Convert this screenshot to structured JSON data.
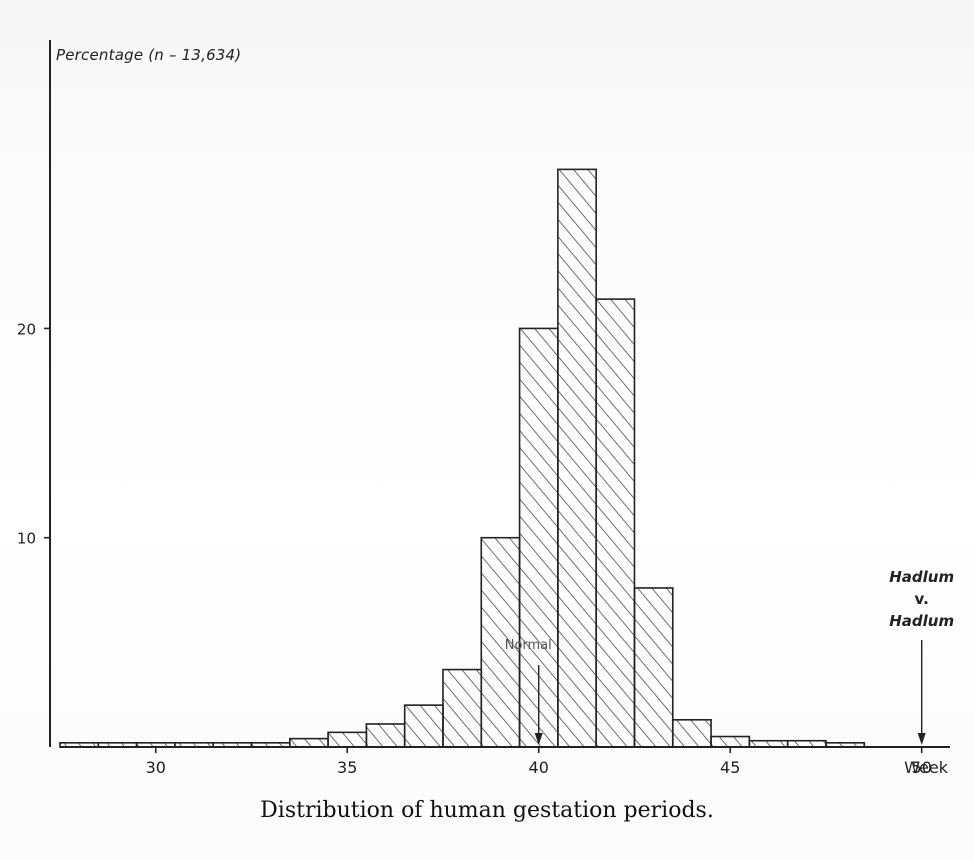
{
  "chart_data": {
    "type": "bar",
    "title": "Distribution of human gestation periods.",
    "ylabel": "Percentage (n – 13,634)",
    "xlabel": "Week",
    "ylim": [
      0,
      28
    ],
    "xlim": [
      27.5,
      51
    ],
    "yticks": [
      "10",
      "20"
    ],
    "ytick_values": [
      10,
      20
    ],
    "xticks": [
      "30",
      "35",
      "40",
      "45",
      "50"
    ],
    "xtick_values": [
      30,
      35,
      40,
      45,
      50
    ],
    "bin_width": 1,
    "bins": [
      {
        "start": 27.5,
        "value": 0.2
      },
      {
        "start": 28.5,
        "value": 0.2
      },
      {
        "start": 29.5,
        "value": 0.2
      },
      {
        "start": 30.5,
        "value": 0.2
      },
      {
        "start": 31.5,
        "value": 0.2
      },
      {
        "start": 32.5,
        "value": 0.2
      },
      {
        "start": 33.5,
        "value": 0.4
      },
      {
        "start": 34.5,
        "value": 0.7
      },
      {
        "start": 35.5,
        "value": 1.1
      },
      {
        "start": 36.5,
        "value": 2.0
      },
      {
        "start": 37.5,
        "value": 3.7
      },
      {
        "start": 38.5,
        "value": 10.0
      },
      {
        "start": 39.5,
        "value": 20.0
      },
      {
        "start": 40.5,
        "value": 27.6
      },
      {
        "start": 41.5,
        "value": 21.4
      },
      {
        "start": 42.5,
        "value": 7.6
      },
      {
        "start": 43.5,
        "value": 1.3
      },
      {
        "start": 44.5,
        "value": 0.5
      },
      {
        "start": 45.5,
        "value": 0.3
      },
      {
        "start": 46.5,
        "value": 0.3
      },
      {
        "start": 47.5,
        "value": 0.2
      }
    ],
    "annotations": [
      {
        "text": "Normal",
        "x": 40.0
      },
      {
        "text": "Hadlum v. Hadlum",
        "x": 50.0
      }
    ],
    "grid": false,
    "hatch": "diagonal"
  },
  "labels": {
    "ylabel": "Percentage (n – 13,634)",
    "xunit": "Week",
    "caption": "Distribution of human gestation periods.",
    "normal": "Normal",
    "hadlum_line1": "Hadlum",
    "hadlum_line2": "v.",
    "hadlum_line3": "Hadlum"
  },
  "colors": {
    "ink": "#222222",
    "hatch": "#333333"
  }
}
